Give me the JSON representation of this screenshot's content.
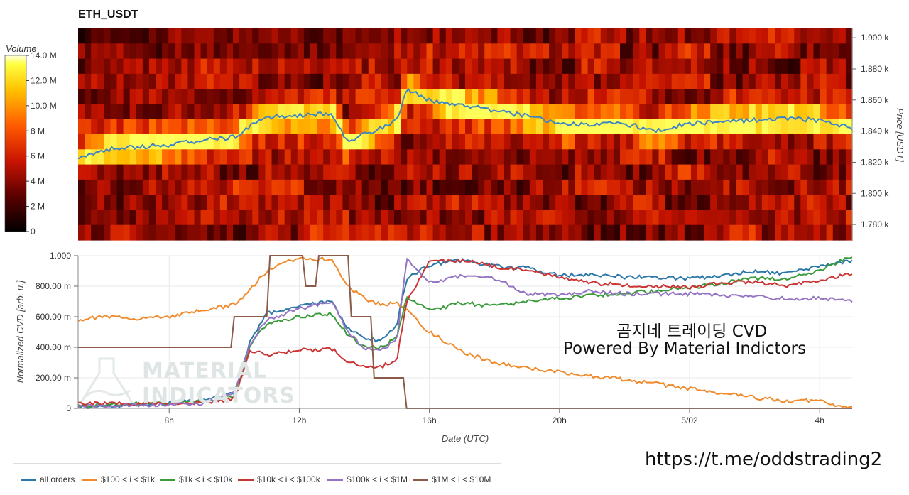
{
  "title": "ETH_USDT",
  "colorbar": {
    "label": "Volume",
    "ticks": [
      "14.0 M",
      "12.0 M",
      "10.0 M",
      "8 M",
      "6 M",
      "4 M",
      "2 M",
      "0"
    ]
  },
  "heatmap_axis": {
    "label": "Price [USDT]",
    "ticks": [
      "1.900 k",
      "1.880 k",
      "1.860 k",
      "1.840 k",
      "1.820 k",
      "1.800 k",
      "1.780 k"
    ]
  },
  "cvd_axis": {
    "label": "Normalized CVD [arb. u.]",
    "ticks": [
      "1.000",
      "800.00 m",
      "600.00 m",
      "400.00 m",
      "200.00 m",
      "0"
    ]
  },
  "x_axis": {
    "label": "Date (UTC)",
    "ticks": [
      "8h",
      "12h",
      "16h",
      "20h",
      "5/02",
      "4h"
    ]
  },
  "watermark": {
    "line1": "MATERIAL",
    "line2": "INDICATORS"
  },
  "annotation": {
    "line1": "곰지네 트레이딩 CVD",
    "line2": "Powered By Material Indictors"
  },
  "footer_url": "https://t.me/oddstrading2",
  "colors": {
    "all": "#2b78a8",
    "s1": "#f08a2b",
    "s2": "#3a9b3a",
    "s3": "#cc3333",
    "s4": "#9473c3",
    "s5": "#8c5a48"
  },
  "chart_data": [
    {
      "type": "heatmap",
      "title": "ETH_USDT",
      "ylabel": "Price [USDT]",
      "ylim": [
        1770,
        1906
      ],
      "colorbar": {
        "label": "Volume",
        "range": [
          0,
          14000000
        ]
      },
      "price_line": {
        "x": [
          5.2,
          6,
          7,
          8,
          9,
          10,
          10.5,
          11,
          12,
          13,
          13.5,
          14,
          14.5,
          15,
          15.3,
          16,
          17,
          18,
          19,
          20,
          21,
          22,
          23,
          24,
          25,
          26,
          27,
          28,
          29
        ],
        "y": [
          1823,
          1828,
          1830,
          1831,
          1834,
          1836,
          1843,
          1849,
          1850,
          1851,
          1833,
          1838,
          1842,
          1847,
          1867,
          1860,
          1857,
          1853,
          1850,
          1845,
          1844,
          1845,
          1840,
          1845,
          1846,
          1847,
          1848,
          1847,
          1842
        ]
      }
    },
    {
      "type": "line",
      "xlabel": "Date (UTC)",
      "ylabel": "Normalized CVD [arb. u.]",
      "ylim": [
        0,
        1
      ],
      "x_ticks": [
        "8h",
        "12h",
        "16h",
        "20h",
        "5/02",
        "4h"
      ],
      "series": [
        {
          "name": "all orders",
          "x": [
            5.2,
            7,
            9,
            10,
            10.5,
            11,
            12,
            13,
            13.5,
            14,
            14.5,
            15,
            15.3,
            16,
            17,
            18,
            19,
            20,
            21,
            22,
            23,
            24,
            25,
            26,
            27,
            28,
            29
          ],
          "y": [
            0.01,
            0.02,
            0.05,
            0.1,
            0.45,
            0.62,
            0.67,
            0.7,
            0.52,
            0.46,
            0.44,
            0.55,
            0.85,
            0.94,
            0.97,
            0.93,
            0.92,
            0.87,
            0.88,
            0.86,
            0.86,
            0.85,
            0.87,
            0.9,
            0.88,
            0.93,
            0.97
          ]
        },
        {
          "name": "$100 < i < $1k",
          "x": [
            5.2,
            6,
            7,
            8,
            9,
            10,
            10.5,
            11,
            12,
            13,
            13.5,
            14,
            14.5,
            15,
            15.3,
            16,
            17,
            18,
            19,
            20,
            21,
            22,
            23,
            24,
            25,
            26,
            27,
            28,
            29
          ],
          "y": [
            0.58,
            0.6,
            0.59,
            0.6,
            0.64,
            0.68,
            0.78,
            0.9,
            0.99,
            0.97,
            0.8,
            0.72,
            0.68,
            0.69,
            0.64,
            0.5,
            0.37,
            0.3,
            0.26,
            0.24,
            0.21,
            0.19,
            0.16,
            0.13,
            0.1,
            0.07,
            0.05,
            0.05,
            0.0
          ]
        },
        {
          "name": "$1k < i < $10k",
          "x": [
            5.2,
            7,
            9,
            10,
            10.5,
            11,
            12,
            13,
            13.5,
            14,
            14.5,
            15,
            15.3,
            16,
            17,
            18,
            19,
            20,
            21,
            22,
            23,
            24,
            25,
            26,
            27,
            28,
            29
          ],
          "y": [
            0.02,
            0.03,
            0.04,
            0.08,
            0.42,
            0.55,
            0.6,
            0.62,
            0.48,
            0.4,
            0.4,
            0.46,
            0.72,
            0.64,
            0.69,
            0.67,
            0.7,
            0.72,
            0.74,
            0.75,
            0.77,
            0.79,
            0.82,
            0.85,
            0.85,
            0.9,
            1.0
          ]
        },
        {
          "name": "$10k < i < $100k",
          "x": [
            5.2,
            7,
            9,
            10,
            10.5,
            11,
            12,
            13,
            13.5,
            14,
            14.5,
            15,
            15.3,
            16,
            17,
            18,
            19,
            20,
            21,
            22,
            23,
            24,
            25,
            26,
            27,
            28,
            29
          ],
          "y": [
            0.03,
            0.03,
            0.04,
            0.06,
            0.38,
            0.35,
            0.38,
            0.39,
            0.3,
            0.28,
            0.27,
            0.32,
            0.7,
            0.96,
            0.97,
            0.93,
            0.9,
            0.86,
            0.82,
            0.81,
            0.8,
            0.79,
            0.82,
            0.83,
            0.8,
            0.84,
            0.88
          ]
        },
        {
          "name": "$100k < i < $1M",
          "x": [
            5.2,
            7,
            9,
            10,
            10.5,
            11,
            12,
            13,
            13.5,
            14,
            14.5,
            15,
            15.3,
            16,
            17,
            18,
            19,
            20,
            21,
            22,
            23,
            24,
            25,
            26,
            27,
            28,
            29
          ],
          "y": [
            0.01,
            0.02,
            0.03,
            0.1,
            0.43,
            0.58,
            0.65,
            0.7,
            0.5,
            0.39,
            0.38,
            0.45,
            0.98,
            0.82,
            0.87,
            0.85,
            0.75,
            0.74,
            0.77,
            0.75,
            0.75,
            0.75,
            0.74,
            0.73,
            0.72,
            0.72,
            0.7
          ]
        },
        {
          "name": "$1M < i < $10M",
          "x": [
            5.2,
            9.9,
            10.0,
            11.0,
            11.1,
            12.1,
            12.2,
            12.5,
            12.6,
            13.5,
            13.6,
            14.2,
            14.3,
            15.2,
            15.3,
            29
          ],
          "y": [
            0.4,
            0.4,
            0.6,
            0.6,
            1.0,
            1.0,
            0.8,
            0.8,
            1.0,
            1.0,
            0.6,
            0.6,
            0.2,
            0.2,
            0.0,
            0.0
          ]
        }
      ]
    }
  ]
}
